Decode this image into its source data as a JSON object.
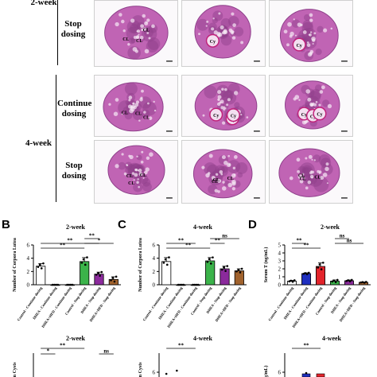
{
  "histology": {
    "week2_label": "2-week",
    "week4_label": "4-week",
    "stop_dosing": "Stop dosing",
    "continue_dosing": "Continue dosing",
    "cl": "CL",
    "cy": "Cy"
  },
  "panels": {
    "B": {
      "letter": "B",
      "title": "2-week"
    },
    "C": {
      "letter": "C",
      "title": "4-week"
    },
    "D": {
      "letter": "D",
      "title": "2-week"
    },
    "E": {
      "title": "2-week"
    },
    "F": {
      "title": "4-week"
    },
    "G": {
      "title": "4-week"
    }
  },
  "colors": {
    "control": "#ffffff",
    "dhea": "#1f2fbf",
    "hfd": "#e3242b",
    "stop_control": "#3bb34a",
    "stop_dhea": "#8b2a9c",
    "stop_hfd": "#a0622d",
    "tissue": "#c064b4",
    "tissue_dark": "#8e3f8a",
    "cyst_fill": "#f3dff0"
  },
  "chart_data": [
    {
      "type": "bar",
      "panel": "B",
      "title": "2-week",
      "ylabel": "Number of Corpora Lutea",
      "ylim": [
        0,
        6
      ],
      "yticks": [
        0,
        2,
        4,
        6
      ],
      "categories": [
        "Control - Continue dosing",
        "DHEA - Continue dosing",
        "DHEA+HFD - Continue dosing",
        "Control - Stop dosing",
        "DHEA - Stop dosing",
        "DHEA+HFD - Stop dosing"
      ],
      "values": [
        2.8,
        0,
        0,
        3.5,
        1.6,
        0.8
      ],
      "errors": [
        0.4,
        0,
        0,
        0.6,
        0.3,
        0.4
      ],
      "significance": [
        "**",
        "**",
        "*",
        "**"
      ]
    },
    {
      "type": "bar",
      "panel": "C",
      "title": "4-week",
      "ylabel": "Number of Corpora Lutea",
      "ylim": [
        0,
        6
      ],
      "yticks": [
        0,
        2,
        4,
        6
      ],
      "categories": [
        "Control - Continue dosing",
        "DHEA - Continue dosing",
        "DHEA+HFD - Continue dosing",
        "Control - Stop dosing",
        "DHEA - Stop dosing",
        "DHEA+HFD - Stop dosing"
      ],
      "values": [
        3.5,
        0,
        0,
        3.6,
        2.4,
        2.1
      ],
      "errors": [
        0.6,
        0,
        0,
        0.5,
        0.4,
        0.3
      ],
      "significance": [
        "**",
        "**",
        "**",
        "ns"
      ]
    },
    {
      "type": "bar",
      "panel": "D",
      "title": "2-week",
      "ylabel": "Serum T (ng/mL)",
      "ylim": [
        0,
        5
      ],
      "yticks": [
        0,
        1,
        2,
        3,
        4,
        5
      ],
      "categories": [
        "Control - Continue dosing",
        "DHEA - Continue dosing",
        "DHEA+HFD - Continue dosing",
        "Control - Stop dosing",
        "DHEA - Stop dosing",
        "DHEA+HFD - Stop dosing"
      ],
      "values": [
        0.45,
        1.4,
        2.3,
        0.45,
        0.5,
        0.3
      ],
      "errors": [
        0.1,
        0.1,
        0.45,
        0.15,
        0.1,
        0.05
      ],
      "significance": [
        "**",
        "**",
        "ns",
        "ns"
      ]
    },
    {
      "type": "bar",
      "panel": "E",
      "title": "2-week",
      "ylabel": "arian Cysts",
      "significance": [
        "**",
        "*",
        "ns"
      ]
    },
    {
      "type": "bar",
      "panel": "F",
      "title": "4-week",
      "ylabel": "arian Cysts",
      "yticks": [
        6
      ],
      "significance": [
        "**"
      ]
    },
    {
      "type": "bar",
      "panel": "G",
      "title": "4-week",
      "ylabel": "(ng/mL)",
      "yticks": [
        6
      ],
      "significance": [
        "**"
      ]
    }
  ]
}
